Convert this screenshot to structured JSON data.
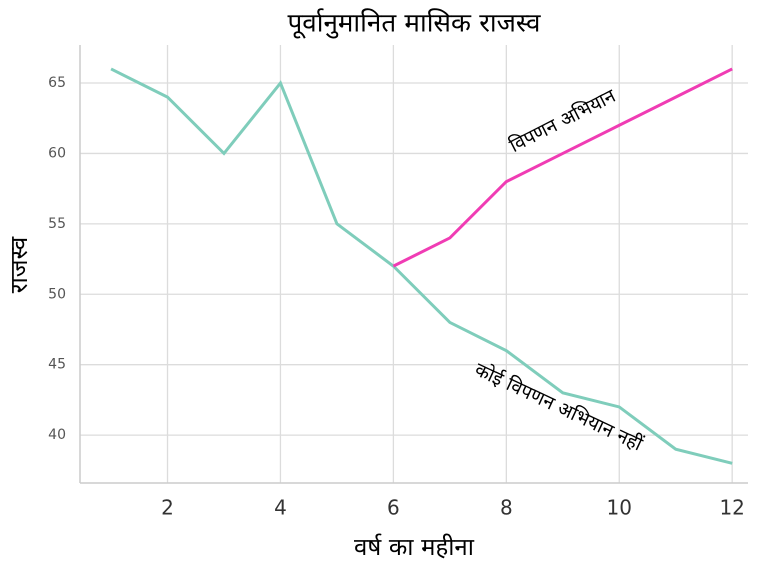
{
  "chart_data": {
    "type": "line",
    "title": "पूर्वानुमानित मासिक राजस्व",
    "x_label": "वर्ष का महीना",
    "y_label": "राजस्व",
    "series": [
      {
        "name": "कोई विपणन अभियान नहीं",
        "color": "#7fcdbb",
        "x": [
          1,
          2,
          3,
          4,
          5,
          6,
          7,
          8,
          9,
          10,
          11,
          12
        ],
        "values": [
          66,
          64,
          60,
          65,
          55,
          52,
          48,
          46,
          43,
          42,
          39,
          38
        ]
      },
      {
        "name": "विपणन अभियान",
        "color": "#f03cb4",
        "x": [
          6,
          7,
          8,
          9,
          10,
          11,
          12
        ],
        "values": [
          52,
          54,
          58,
          60,
          62,
          64,
          66
        ]
      }
    ],
    "xlim": [
      0.45,
      12.28
    ],
    "ylim": [
      36.6,
      67.7
    ],
    "xticks": [
      2,
      4,
      6,
      8,
      10,
      12
    ],
    "yticks": [
      40,
      45,
      50,
      55,
      60,
      65
    ],
    "grid": true
  }
}
